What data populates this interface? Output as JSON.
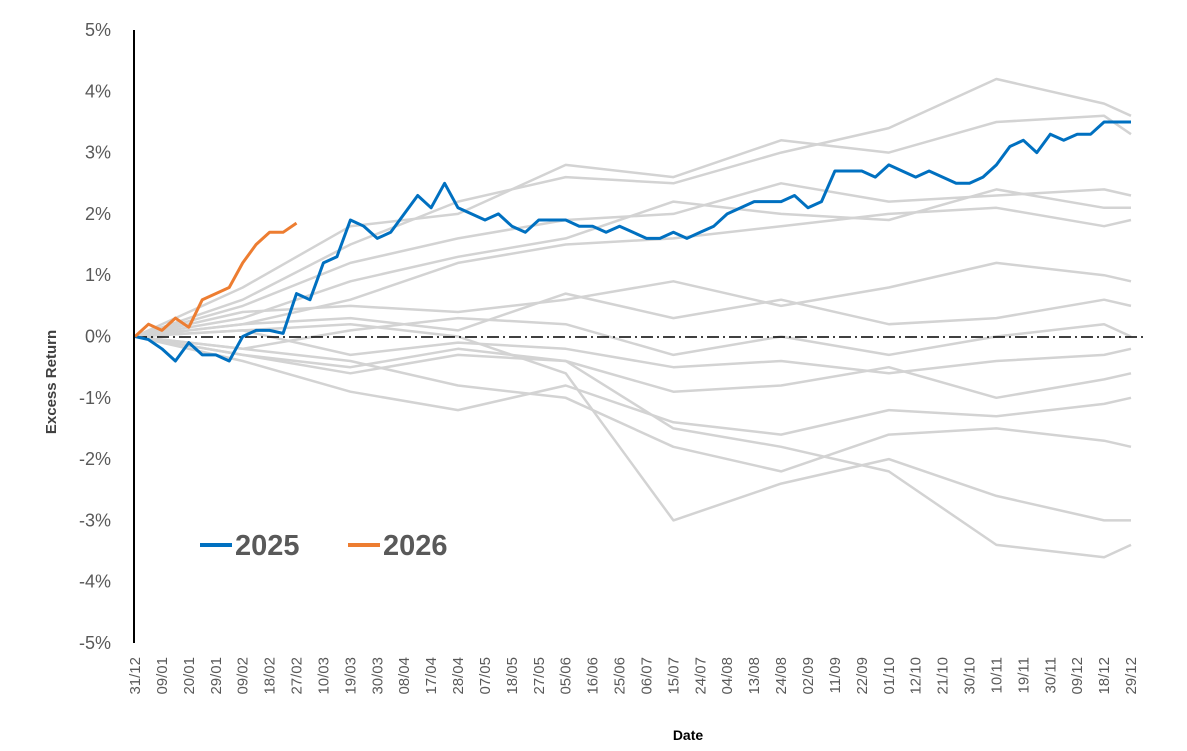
{
  "chart_data": {
    "type": "line",
    "title": "",
    "xlabel": "Date",
    "ylabel": "Excess Return",
    "ylim": [
      -5,
      5
    ],
    "y_ticks": [
      5,
      4,
      3,
      2,
      1,
      0,
      -1,
      -2,
      -3,
      -4,
      -5
    ],
    "y_tick_labels": [
      "5%",
      "4%",
      "3%",
      "2%",
      "1%",
      "0%",
      "-1%",
      "-2%",
      "-3%",
      "-4%",
      "-5%"
    ],
    "x_tick_labels": [
      "31/12",
      "09/01",
      "20/01",
      "29/01",
      "09/02",
      "18/02",
      "27/02",
      "10/03",
      "19/03",
      "30/03",
      "08/04",
      "17/04",
      "28/04",
      "07/05",
      "18/05",
      "27/05",
      "05/06",
      "16/06",
      "25/06",
      "06/07",
      "15/07",
      "24/07",
      "04/08",
      "13/08",
      "24/08",
      "02/09",
      "11/09",
      "22/09",
      "01/10",
      "12/10",
      "21/10",
      "30/10",
      "10/11",
      "19/11",
      "30/11",
      "09/12",
      "18/12",
      "29/12"
    ],
    "legend": {
      "placement": "bottom-left",
      "entries": [
        "2025",
        "2026"
      ]
    },
    "colors": {
      "2025": "#0070C0",
      "2026": "#ED7D31",
      "history": "#D3D3D3",
      "zero_line": "#000000"
    },
    "series": [
      {
        "name": "2025",
        "x_index": [
          0,
          0.5,
          1,
          1.5,
          2,
          2.5,
          3,
          3.5,
          4,
          4.5,
          5,
          5.5,
          6,
          6.5,
          7,
          7.5,
          8,
          8.5,
          9,
          9.5,
          10,
          10.5,
          11,
          11.5,
          12,
          12.5,
          13,
          13.5,
          14,
          14.5,
          15,
          15.5,
          16,
          16.5,
          17,
          17.5,
          18,
          18.5,
          19,
          19.5,
          20,
          20.5,
          21,
          21.5,
          22,
          22.5,
          23,
          23.5,
          24,
          24.5,
          25,
          25.5,
          26,
          26.5,
          27,
          27.5,
          28,
          28.5,
          29,
          29.5,
          30,
          30.5,
          31,
          31.5,
          32,
          32.5,
          33,
          33.5,
          34,
          34.5,
          35,
          35.5,
          36,
          36.5,
          37
        ],
        "values": [
          0,
          -0.05,
          -0.2,
          -0.4,
          -0.1,
          -0.3,
          -0.3,
          -0.4,
          0.0,
          0.1,
          0.1,
          0.05,
          0.7,
          0.6,
          1.2,
          1.3,
          1.9,
          1.8,
          1.6,
          1.7,
          2.0,
          2.3,
          2.1,
          2.5,
          2.1,
          2.0,
          1.9,
          2.0,
          1.8,
          1.7,
          1.9,
          1.9,
          1.9,
          1.8,
          1.8,
          1.7,
          1.8,
          1.7,
          1.6,
          1.6,
          1.7,
          1.6,
          1.7,
          1.8,
          2.0,
          2.1,
          2.2,
          2.2,
          2.2,
          2.3,
          2.1,
          2.2,
          2.7,
          2.7,
          2.7,
          2.6,
          2.8,
          2.7,
          2.6,
          2.7,
          2.6,
          2.5,
          2.5,
          2.6,
          2.8,
          3.1,
          3.2,
          3.0,
          3.3,
          3.2,
          3.3,
          3.3,
          3.5,
          3.5,
          3.5
        ]
      },
      {
        "name": "2026",
        "x_index": [
          0,
          0.5,
          1,
          1.5,
          2,
          2.5,
          3,
          3.5,
          4,
          4.5,
          5,
          5.5,
          6
        ],
        "values": [
          0,
          0.2,
          0.1,
          0.3,
          0.15,
          0.6,
          0.7,
          0.8,
          1.2,
          1.5,
          1.7,
          1.7,
          1.85
        ]
      }
    ],
    "history_series": {
      "x_index": [
        0,
        4,
        8,
        12,
        16,
        20,
        24,
        28,
        32,
        36,
        37
      ],
      "lines": [
        [
          0,
          0.6,
          1.5,
          2.2,
          2.6,
          2.5,
          3.0,
          3.4,
          4.2,
          3.8,
          3.6
        ],
        [
          0,
          0.8,
          1.8,
          2.0,
          2.8,
          2.6,
          3.2,
          3.0,
          3.5,
          3.6,
          3.3
        ],
        [
          0,
          0.5,
          1.2,
          1.6,
          1.9,
          2.0,
          2.5,
          2.2,
          2.3,
          2.4,
          2.3
        ],
        [
          0,
          0.3,
          0.9,
          1.3,
          1.6,
          2.2,
          2.0,
          1.9,
          2.4,
          2.1,
          2.1
        ],
        [
          0,
          0.2,
          0.6,
          1.2,
          1.5,
          1.6,
          1.8,
          2.0,
          2.1,
          1.8,
          1.9
        ],
        [
          0,
          0.4,
          0.5,
          0.4,
          0.6,
          0.9,
          0.5,
          0.8,
          1.2,
          1.0,
          0.9
        ],
        [
          0,
          0.2,
          0.3,
          0.1,
          0.7,
          0.3,
          0.6,
          0.2,
          0.3,
          0.6,
          0.5
        ],
        [
          0,
          -0.2,
          0.1,
          0.3,
          0.2,
          -0.3,
          0.0,
          -0.3,
          0.0,
          0.2,
          0.0
        ],
        [
          0,
          0.1,
          -0.3,
          -0.1,
          -0.2,
          -0.5,
          -0.4,
          -0.6,
          -0.4,
          -0.3,
          -0.2
        ],
        [
          0,
          -0.3,
          -0.6,
          -0.3,
          -0.4,
          -0.9,
          -0.8,
          -0.5,
          -1.0,
          -0.7,
          -0.6
        ],
        [
          0,
          -0.4,
          -0.9,
          -1.2,
          -0.8,
          -1.4,
          -1.6,
          -1.2,
          -1.3,
          -1.1,
          -1.0
        ],
        [
          0,
          -0.2,
          -0.4,
          -0.8,
          -1.0,
          -1.8,
          -2.2,
          -1.6,
          -1.5,
          -1.7,
          -1.8
        ],
        [
          0,
          0.1,
          0.2,
          0.0,
          -0.6,
          -3.0,
          -2.4,
          -2.0,
          -2.6,
          -3.0,
          -3.0
        ],
        [
          0,
          -0.3,
          -0.5,
          -0.2,
          -0.4,
          -1.5,
          -1.8,
          -2.2,
          -3.4,
          -3.6,
          -3.4
        ]
      ]
    }
  }
}
